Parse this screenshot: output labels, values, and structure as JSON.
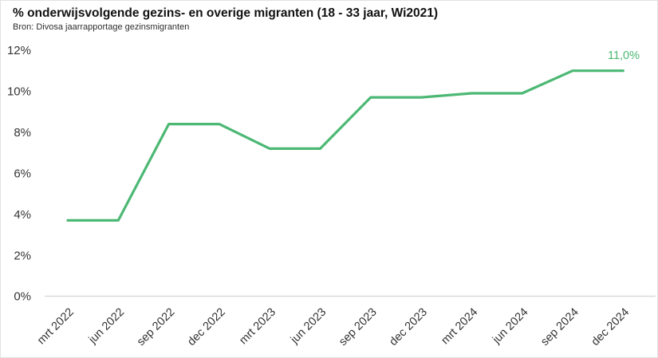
{
  "header": {
    "title": "% onderwijsvolgende gezins- en overige migranten (18 - 33 jaar, Wi2021)",
    "subtitle": "Bron: Divosa jaarrapportage gezinsmigranten"
  },
  "chart_data": {
    "type": "line",
    "title": "% onderwijsvolgende gezins- en overige migranten (18 - 33 jaar, Wi2021)",
    "subtitle": "Bron: Divosa jaarrapportage gezinsmigranten",
    "categories": [
      "mrt 2022",
      "jun 2022",
      "sep 2022",
      "dec 2022",
      "mrt 2023",
      "jun 2023",
      "sep 2023",
      "dec 2023",
      "mrt 2024",
      "jun 2024",
      "sep 2024",
      "dec 2024"
    ],
    "series": [
      {
        "name": "% onderwijsvolgende gezins- en overige migranten",
        "color": "#4cb874",
        "values": [
          3.7,
          3.7,
          8.4,
          8.4,
          7.2,
          7.2,
          9.7,
          9.7,
          9.9,
          9.9,
          11.0,
          11.0
        ]
      }
    ],
    "ylim": [
      0,
      12
    ],
    "y_tick_step": 2,
    "y_tick_labels": [
      "0%",
      "2%",
      "4%",
      "6%",
      "8%",
      "10%",
      "12%"
    ],
    "xlabel": "",
    "ylabel": "",
    "grid": false,
    "legend": "none",
    "end_label": "11,0%",
    "end_label_color": "#4cb874",
    "axis_line_color": "#d9d9d9",
    "tick_label_color": "#333333"
  }
}
